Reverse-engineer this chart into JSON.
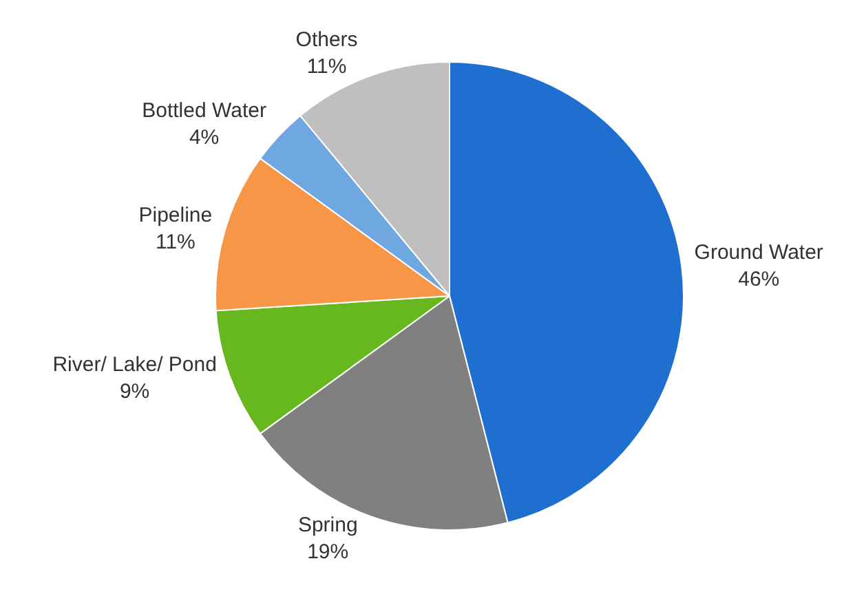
{
  "chart_data": {
    "type": "pie",
    "categories": [
      "Ground Water",
      "Spring",
      "River/ Lake/ Pond",
      "Pipeline",
      "Bottled Water",
      "Others"
    ],
    "values": [
      46,
      19,
      9,
      11,
      4,
      11
    ],
    "value_labels": [
      "46%",
      "19%",
      "9%",
      "11%",
      "4%",
      "11%"
    ],
    "colors": [
      "#1f6fd1",
      "#808080",
      "#67b81e",
      "#f79646",
      "#6fa8e0",
      "#bfbfbf"
    ],
    "legend": false
  }
}
